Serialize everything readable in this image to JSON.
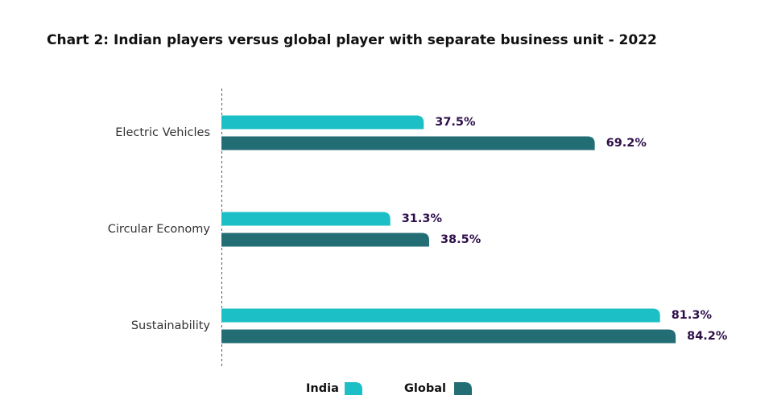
{
  "chart_data": {
    "type": "bar",
    "orientation": "horizontal",
    "title": "Chart 2: Indian players versus global player with separate business unit - 2022",
    "xlabel": "",
    "ylabel": "",
    "xlim": [
      0,
      90
    ],
    "categories": [
      "Electric Vehicles",
      "Circular Economy",
      "Sustainability"
    ],
    "series": [
      {
        "name": "India",
        "color": "#1cbfc6",
        "values": [
          37.5,
          31.3,
          81.3
        ],
        "labels": [
          "37.5%",
          "31.3%",
          "81.3%"
        ]
      },
      {
        "name": "Global",
        "color": "#236d74",
        "values": [
          69.2,
          38.5,
          84.2
        ],
        "labels": [
          "69.2%",
          "38.5%",
          "84.2%"
        ]
      }
    ],
    "legend_position": "bottom-center",
    "grid": false
  }
}
